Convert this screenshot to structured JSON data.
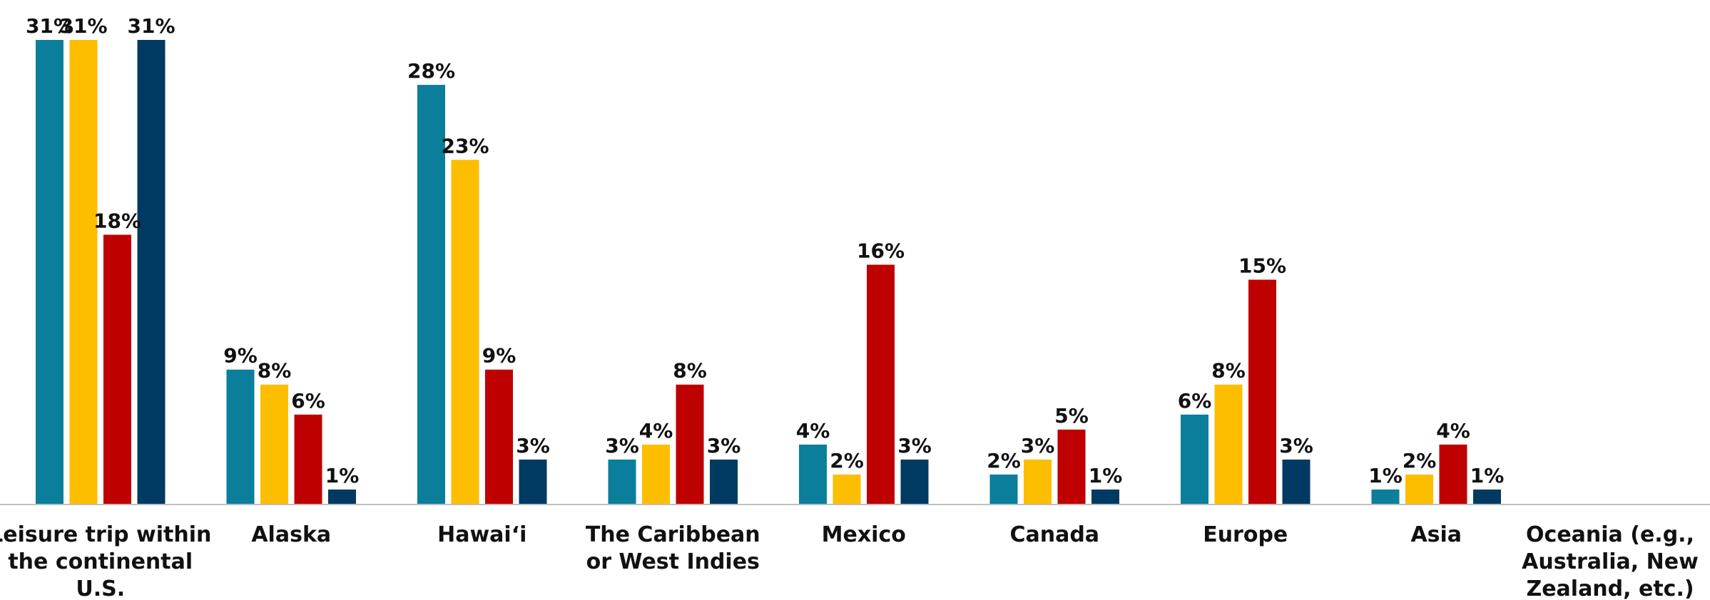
{
  "colors": {
    "series_1": "#0A7E9B",
    "series_2": "#FDBE00",
    "series_3": "#BF0000",
    "series_4": "#003A63",
    "axis": "#BFBFBF"
  },
  "chart_data": {
    "type": "bar",
    "title": "",
    "xlabel": "",
    "ylabel": "",
    "ylim": [
      0,
      31
    ],
    "grid": false,
    "legend": "none",
    "categories": [
      "Leisure trip within the continental U.S.",
      "Alaska",
      "Hawai‘i",
      "The Caribbean or West Indies",
      "Mexico",
      "Canada",
      "Europe",
      "Asia",
      "Oceania (e.g., Australia, New Zealand, etc.)"
    ],
    "category_lines": [
      [
        "Leisure trip within",
        "the continental",
        "U.S."
      ],
      [
        "Alaska"
      ],
      [
        "Hawai‘i"
      ],
      [
        "The Caribbean",
        "or West Indies"
      ],
      [
        "Mexico"
      ],
      [
        "Canada"
      ],
      [
        "Europe"
      ],
      [
        "Asia"
      ],
      [
        "Oceania (e.g.,",
        "Australia, New",
        "Zealand, etc.)"
      ]
    ],
    "series": [
      {
        "values": [
          31,
          9,
          28,
          3,
          4,
          2,
          6,
          1,
          null
        ],
        "labels": [
          "31%",
          "9%",
          "28%",
          "3%",
          "4%",
          "2%",
          "6%",
          "1%",
          ""
        ]
      },
      {
        "values": [
          31,
          8,
          23,
          4,
          2,
          3,
          8,
          2,
          null
        ],
        "labels": [
          "31%",
          "8%",
          "23%",
          "4%",
          "2%",
          "3%",
          "8%",
          "2%",
          ""
        ]
      },
      {
        "values": [
          18,
          6,
          9,
          8,
          16,
          5,
          15,
          4,
          null
        ],
        "labels": [
          "18%",
          "6%",
          "9%",
          "8%",
          "16%",
          "5%",
          "15%",
          "4%",
          ""
        ]
      },
      {
        "values": [
          31,
          1,
          3,
          3,
          3,
          1,
          3,
          1,
          null
        ],
        "labels": [
          "31%",
          "1%",
          "3%",
          "3%",
          "3%",
          "1%",
          "3%",
          "1%",
          ""
        ]
      }
    ]
  }
}
